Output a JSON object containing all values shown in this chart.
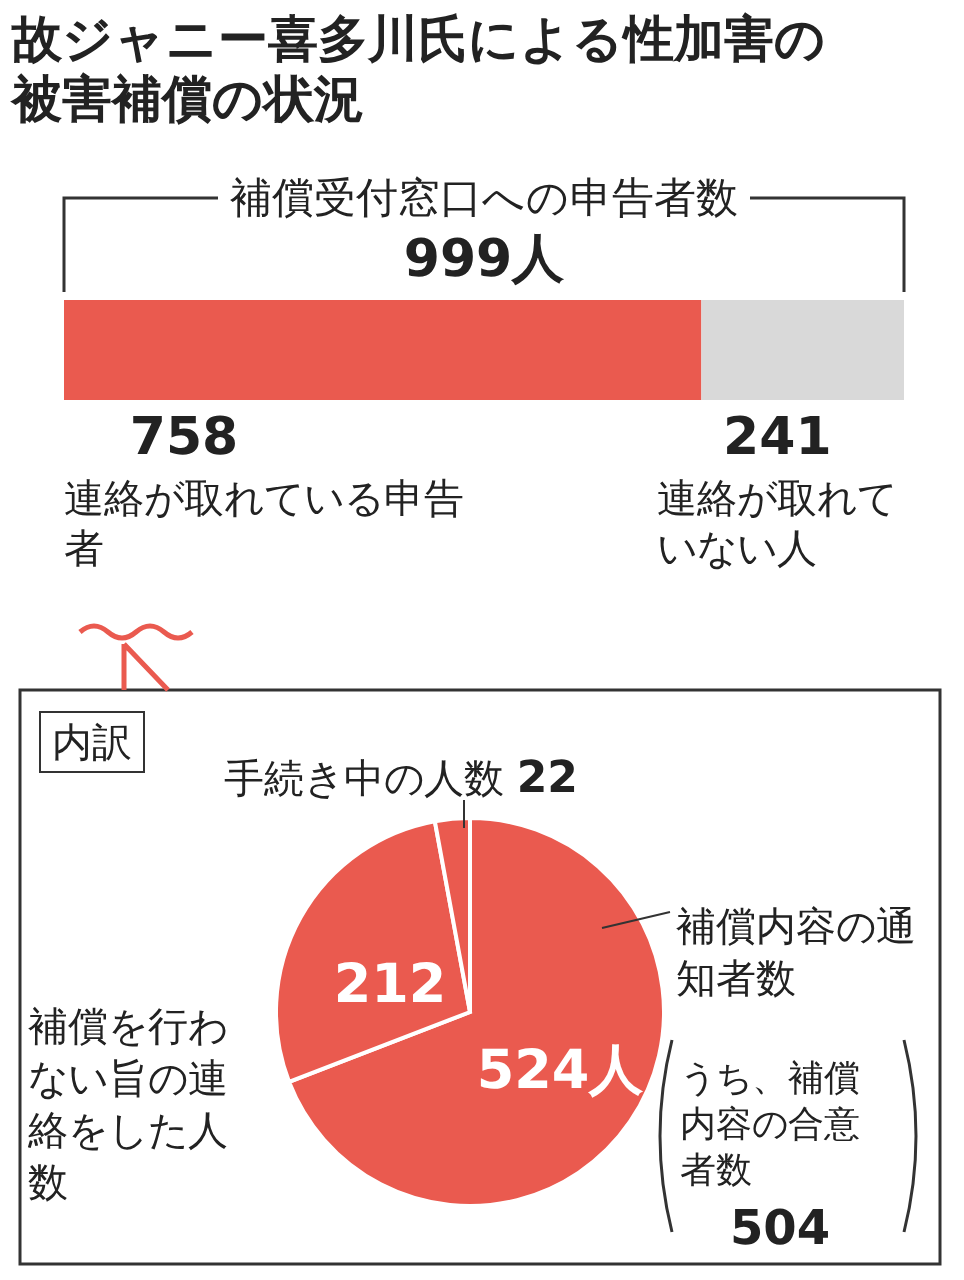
{
  "chart_data": [
    {
      "type": "bar",
      "title": "故ジャニー喜多川氏による性加害の被害補償の状況",
      "orientation": "horizontal",
      "stacked": true,
      "categories": [
        null
      ],
      "series": [
        {
          "name": "連絡が取れている申告者",
          "color": "#ea5a4f",
          "values": [
            758
          ],
          "value_labels": [
            "758"
          ]
        },
        {
          "name": "連絡が取れていない人",
          "color": "#d9d9d9",
          "values": [
            241
          ],
          "value_labels": [
            "241"
          ]
        }
      ],
      "totals": [
        "999人"
      ],
      "annotations": [
        "補償受付窓口への申告者数"
      ],
      "tick_labels": false
    },
    {
      "type": "pie",
      "title": "内訳",
      "categories": [
        "補償内容の通知者数",
        "補償を行わない旨の連絡をした人数",
        "手続き中の人数"
      ],
      "values": [
        524,
        212,
        22
      ],
      "colors": [
        "#ea5a4f",
        "#ea5a4f",
        "#ea5a4f"
      ],
      "value_labels": [
        "524人",
        "212",
        "22"
      ],
      "annotations": [
        "うち、補償内容の合意者数 504"
      ]
    }
  ]
}
